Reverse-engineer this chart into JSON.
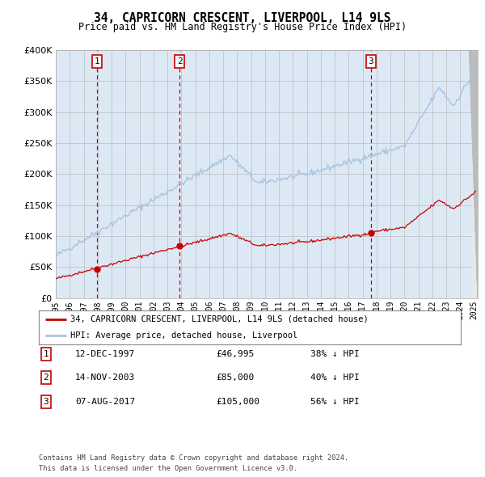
{
  "title": "34, CAPRICORN CRESCENT, LIVERPOOL, L14 9LS",
  "subtitle": "Price paid vs. HM Land Registry's House Price Index (HPI)",
  "legend_line1": "34, CAPRICORN CRESCENT, LIVERPOOL, L14 9LS (detached house)",
  "legend_line2": "HPI: Average price, detached house, Liverpool",
  "sale1_date": "12-DEC-1997",
  "sale1_price": 46995,
  "sale1_hpi": "38% ↓ HPI",
  "sale2_date": "14-NOV-2003",
  "sale2_price": 85000,
  "sale2_hpi": "40% ↓ HPI",
  "sale3_date": "07-AUG-2017",
  "sale3_price": 105000,
  "sale3_hpi": "56% ↓ HPI",
  "footer_line1": "Contains HM Land Registry data © Crown copyright and database right 2024.",
  "footer_line2": "This data is licensed under the Open Government Licence v3.0.",
  "hpi_color": "#a8c4e0",
  "price_color": "#cc0000",
  "vline_color": "#cc0000",
  "label_box_color": "#cc0000",
  "bg_shaded_color": "#dce9f5",
  "grid_color": "#bbbbbb",
  "ylim": [
    0,
    400000
  ],
  "ylabel_ticks": [
    0,
    50000,
    100000,
    150000,
    200000,
    250000,
    300000,
    350000,
    400000
  ]
}
